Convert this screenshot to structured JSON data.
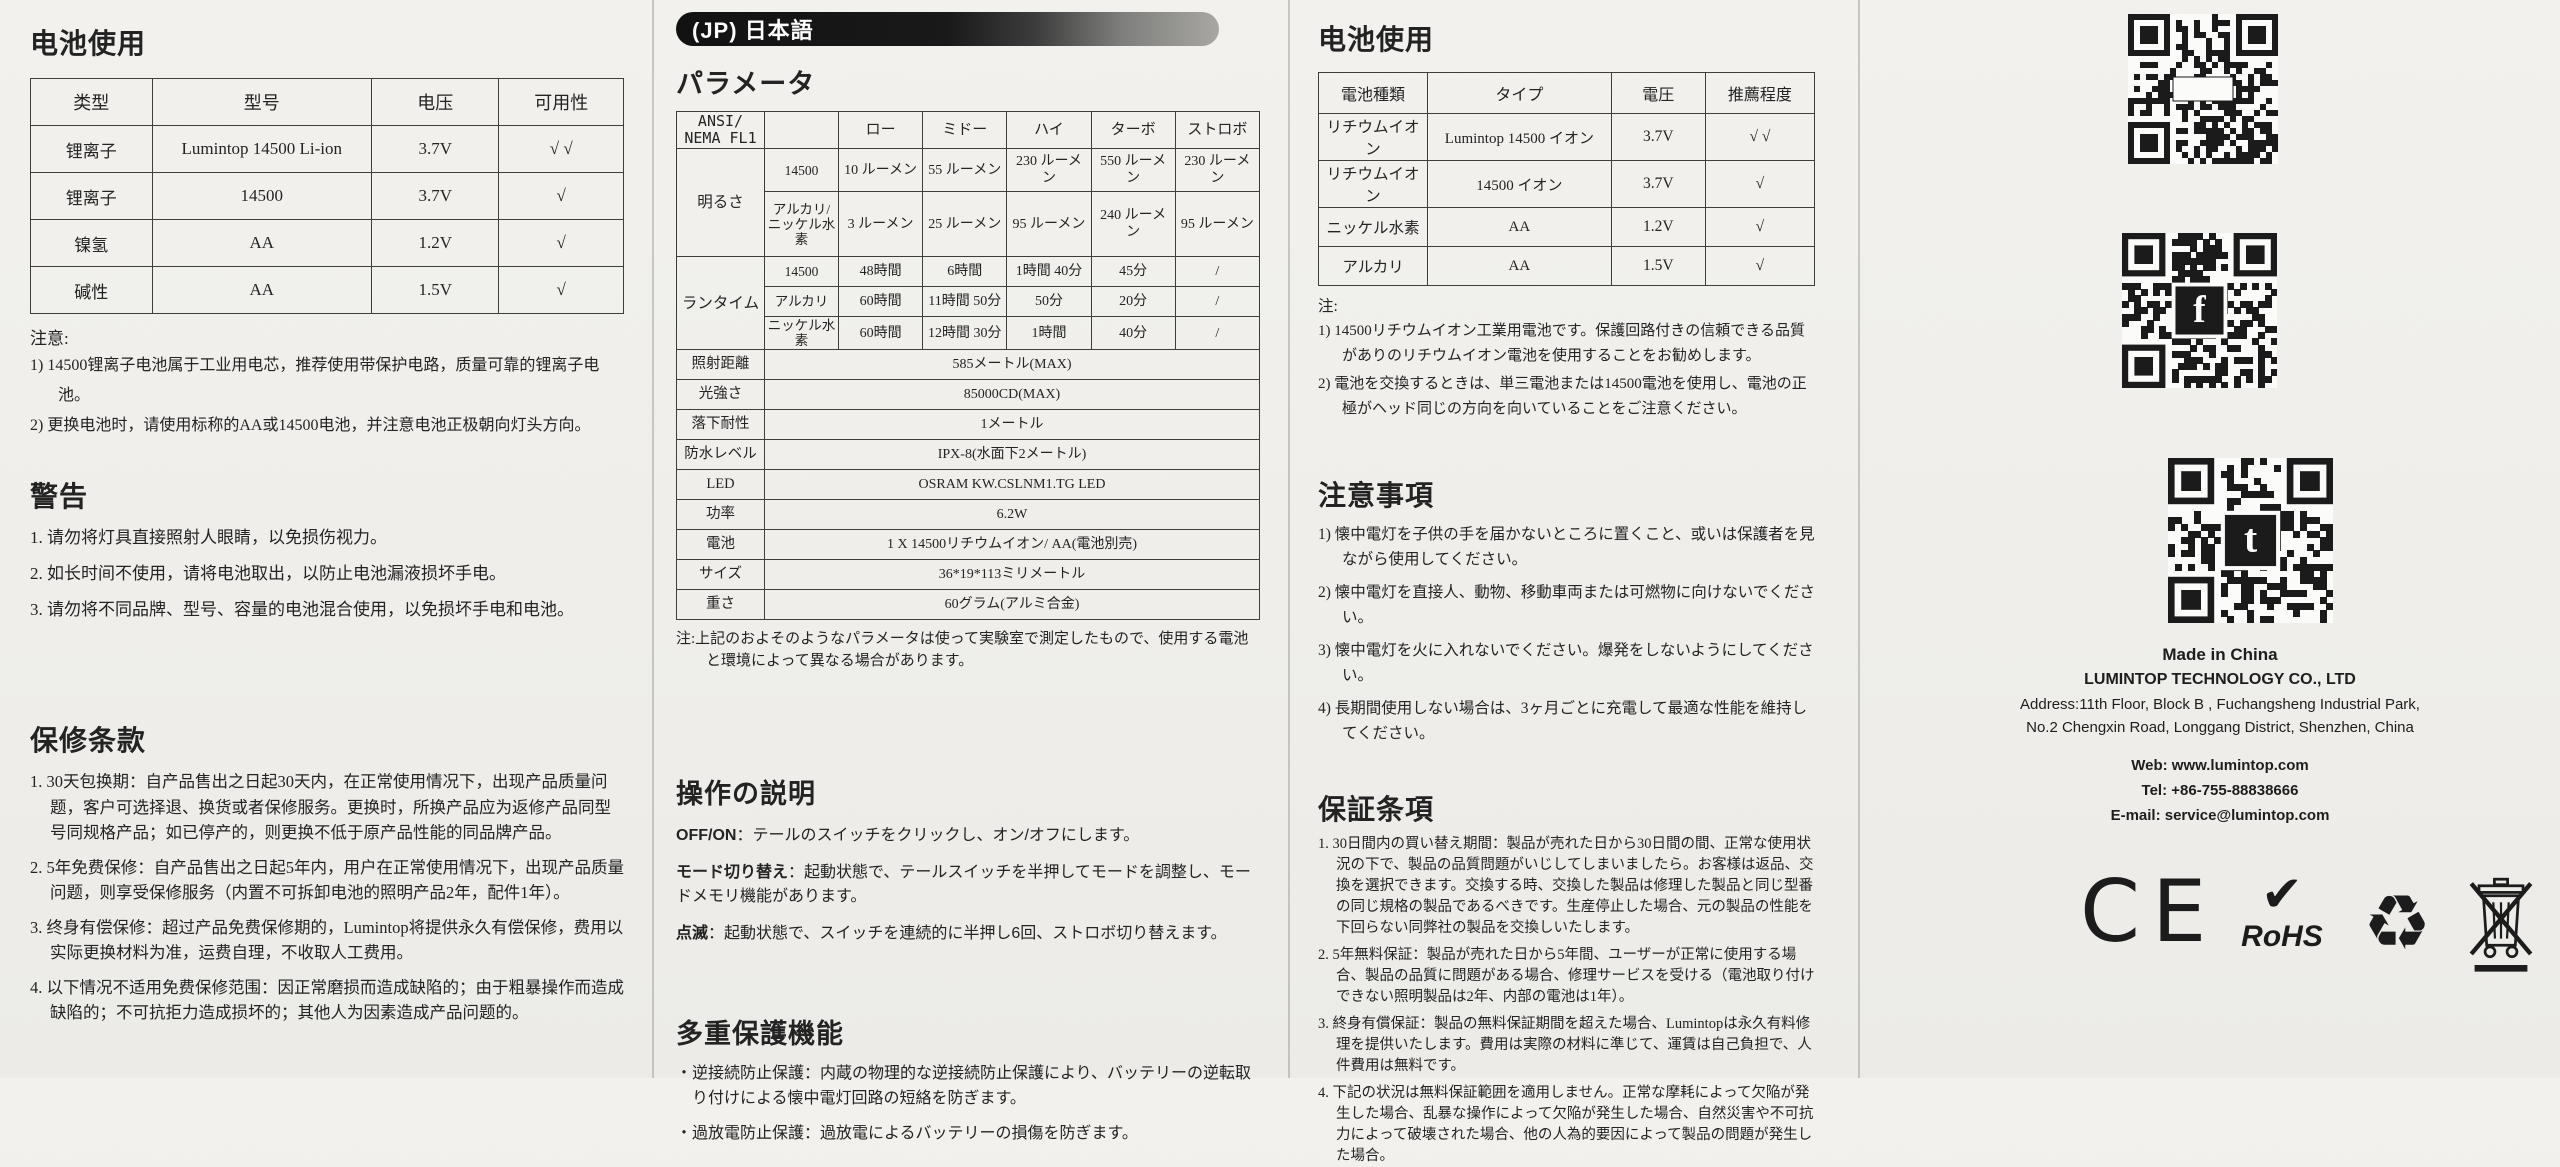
{
  "colors": {
    "paper_bg": "#f0efeb",
    "ink": "#232323",
    "banner_bg": "#121212",
    "banner_text": "#ffffff",
    "table_border": "#3d3d3c"
  },
  "col1": {
    "battery_section": {
      "title": "电池使用",
      "table": {
        "headers": [
          "类型",
          "型号",
          "电压",
          "可用性"
        ],
        "rows": [
          [
            "锂离子",
            "Lumintop 14500 Li-ion",
            "3.7V",
            "√ √"
          ],
          [
            "锂离子",
            "14500",
            "3.7V",
            "√"
          ],
          [
            "镍氢",
            "AA",
            "1.2V",
            "√"
          ],
          [
            "碱性",
            "AA",
            "1.5V",
            "√"
          ]
        ]
      },
      "notes_title": "注意:",
      "notes": [
        "1) 14500锂离子电池属于工业用电芯，推荐使用带保护电路，质量可靠的锂离子电池。",
        "2) 更换电池时，请使用标称的AA或14500电池，并注意电池正极朝向灯头方向。"
      ]
    },
    "warning_section": {
      "title": "警告",
      "items": [
        "1.  请勿将灯具直接照射人眼睛，以免损伤视力。",
        "2.  如长时间不使用，请将电池取出，以防止电池漏液损坏手电。",
        "3.  请勿将不同品牌、型号、容量的电池混合使用，以免损坏手电和电池。"
      ]
    },
    "warranty_section": {
      "title": "保修条款",
      "items": [
        "1. 30天包换期：自产品售出之日起30天内，在正常使用情况下，出现产品质量问题，客户可选择退、换货或者保修服务。更换时，所换产品应为返修产品同型号同规格产品；如已停产的，则更换不低于原产品性能的同品牌产品。",
        "2. 5年免费保修：自产品售出之日起5年内，用户在正常使用情况下，出现产品质量问题，则享受保修服务（内置不可拆卸电池的照明产品2年，配件1年）。",
        "3. 终身有偿保修：超过产品免费保修期的，Lumintop将提供永久有偿保修，费用以实际更换材料为准，运费自理，不收取人工费用。",
        "4. 以下情况不适用免费保修范围：因正常磨损而造成缺陷的；由于粗暴操作而造成缺陷的；不可抗拒力造成损坏的；其他人为因素造成产品问题的。"
      ]
    }
  },
  "col2": {
    "banner": "(JP) 日本語",
    "params_title": "パラメータ",
    "table": {
      "corner": "ANSI/ NEMA FL1",
      "modes": [
        "ロー",
        "ミドー",
        "ハイ",
        "ターボ",
        "ストロボ"
      ],
      "brightness": {
        "label": "明るさ",
        "rows": [
          {
            "battery": "14500",
            "values": [
              "10 ルーメン",
              "55 ルーメン",
              "230 ルーメン",
              "550 ルーメン",
              "230 ルーメン"
            ]
          },
          {
            "battery": "アルカリ/ニッケル水素",
            "values": [
              "3 ルーメン",
              "25 ルーメン",
              "95 ルーメン",
              "240 ルーメン",
              "95 ルーメン"
            ]
          }
        ]
      },
      "runtime": {
        "label": "ランタイム",
        "rows": [
          {
            "battery": "14500",
            "values": [
              "48時間",
              "6時間",
              "1時間 40分",
              "45分",
              "/"
            ]
          },
          {
            "battery": "アルカリ",
            "values": [
              "60時間",
              "11時間 50分",
              "50分",
              "20分",
              "/"
            ]
          },
          {
            "battery": "ニッケル水素",
            "values": [
              "60時間",
              "12時間 30分",
              "1時間",
              "40分",
              "/"
            ]
          }
        ]
      },
      "specs": [
        [
          "照射距離",
          "585メートル(MAX)"
        ],
        [
          "光強さ",
          "85000CD(MAX)"
        ],
        [
          "落下耐性",
          "1メートル"
        ],
        [
          "防水レベル",
          "IPX-8(水面下2メートル)"
        ],
        [
          "LED",
          "OSRAM KW.CSLNM1.TG LED"
        ],
        [
          "功率",
          "6.2W"
        ],
        [
          "電池",
          "1 X 14500リチウムイオン/ AA(電池別売)"
        ],
        [
          "サイズ",
          "36*19*113ミリメートル"
        ],
        [
          "重さ",
          "60グラム(アルミ合金)"
        ]
      ]
    },
    "table_note": "注:上記のおよそのようなパラメータは使って実験室で測定したもので、使用する電池と環境によって異なる場合があります。",
    "operation": {
      "title": "操作の説明",
      "items": [
        {
          "label": "OFF/ON",
          "text": "：テールのスイッチをクリックし、オン/オフにします。"
        },
        {
          "label": "モード切り替え",
          "text": "：起動状態で、テールスイッチを半押してモードを調整し、モードメモリ機能があります。"
        },
        {
          "label": "点滅",
          "text": "：起動状態で、スイッチを連続的に半押し6回、ストロボ切り替えます。"
        }
      ]
    },
    "protection": {
      "title": "多重保護機能",
      "bullets": [
        "・逆接続防止保護：内蔵の物理的な逆接続防止保護により、バッテリーの逆転取り付けによる懐中電灯回路の短絡を防ぎます。",
        "・過放電防止保護：過放電によるバッテリーの損傷を防ぎます。"
      ]
    }
  },
  "col3": {
    "battery_section": {
      "title": "电池使用",
      "table": {
        "headers": [
          "電池種類",
          "タイプ",
          "電圧",
          "推薦程度"
        ],
        "rows": [
          [
            "リチウムイオン",
            "Lumintop 14500 イオン",
            "3.7V",
            "√ √"
          ],
          [
            "リチウムイオン",
            "14500 イオン",
            "3.7V",
            "√"
          ],
          [
            "ニッケル水素",
            "AA",
            "1.2V",
            "√"
          ],
          [
            "アルカリ",
            "AA",
            "1.5V",
            "√"
          ]
        ]
      },
      "notes_title": "注:",
      "notes": [
        "1) 14500リチウムイオン工業用電池です。保護回路付きの信頼できる品質がありのリチウムイオン電池を使用することをお勧めします。",
        "2) 電池を交換するときは、単三電池または14500電池を使用し、電池の正極がヘッド同じの方向を向いていることをご注意ください。"
      ]
    },
    "cautions": {
      "title": "注意事項",
      "items": [
        "1) 懐中電灯を子供の手を届かないところに置くこと、或いは保護者を見ながら使用してください。",
        "2) 懐中電灯を直接人、動物、移動車両または可燃物に向けないでください。",
        "3) 懐中電灯を火に入れないでください。爆発をしないようにしてください。",
        "4) 長期間使用しない場合は、3ヶ月ごとに充電して最適な性能を維持してください。"
      ]
    },
    "warranty": {
      "title": "保証条項",
      "items": [
        "1. 30日間内の買い替え期間：製品が売れた日から30日間の間、正常な使用状況の下で、製品の品質問題がいじしてしまいましたら。お客様は返品、交換を選択できます。交換する時、交換した製品は修理した製品と同じ型番の同じ規格の製品であるべきです。生産停止した場合、元の製品の性能を下回らない同弊社の製品を交換しいたします。",
        "2. 5年無料保証：製品が売れた日から5年間、ユーザーが正常に使用する場合、製品の品質に問題がある場合、修理サービスを受ける（電池取り付けできない照明製品は2年、内部の電池は1年）。",
        "3. 終身有償保証：製品の無料保証期間を超えた場合、Lumintopは永久有料修理を提供いたします。費用は実際の材料に準じて、運賃は自己負担で、人件費用は無料です。",
        "4. 下記の状況は無料保証範囲を適用しません。正常な摩耗によって欠陥が発生した場合、乱暴な操作によって欠陥が発生した場合、自然災害や不可抗力によって破壊された場合、他の人為的要因によって製品の問題が発生した場合。"
      ]
    }
  },
  "col4": {
    "qr_codes": [
      {
        "name": "qr-code-website",
        "logo": "pill"
      },
      {
        "name": "qr-code-facebook",
        "logo": "f"
      },
      {
        "name": "qr-code-twitter",
        "logo": "t"
      }
    ],
    "made_in": "Made in China",
    "company": "LUMINTOP TECHNOLOGY CO., LTD",
    "address1": "Address:11th Floor, Block B , Fuchangsheng Industrial Park,",
    "address2": "No.2 Chengxin Road, Longgang District, Shenzhen, China",
    "web": "Web: www.lumintop.com",
    "tel": "Tel: +86-755-88838666",
    "email": "E-mail: service@lumintop.com",
    "marks": {
      "ce": "CE",
      "rohs_check": "✔",
      "rohs": "RoHS",
      "recycle": "♻"
    }
  }
}
